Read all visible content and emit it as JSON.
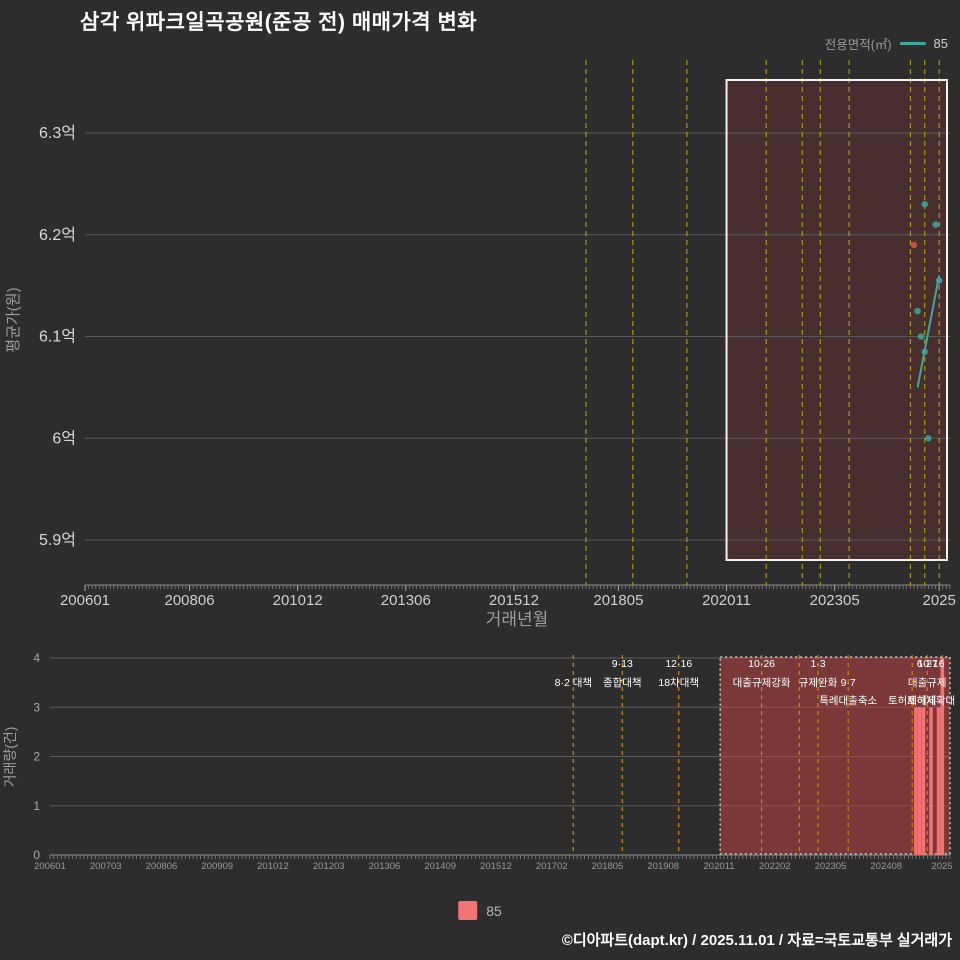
{
  "title": "삼각 위파크일곡공원(준공 전) 매매가격 변화",
  "legend_top": {
    "label": "전용면적(㎡)",
    "series": "85"
  },
  "legend_bottom": {
    "series": "85"
  },
  "footer": "©디아파트(dapt.kr) / 2025.11.01 / 자료=국토교통부 실거래가",
  "colors": {
    "background": "#2d2d2d",
    "title_text": "#ffffff",
    "axis_text": "#9f9f9f",
    "tick_text": "#cfcfcf",
    "grid_line": "#5a5a5a",
    "policy_line_top": "#b3b300",
    "policy_line_bottom": "#cf8600",
    "highlight_fill_top": "rgba(170,50,50,0.22)",
    "highlight_border_top": "#f2f2f2",
    "highlight_fill_bottom": "rgba(220,70,70,0.45)",
    "highlight_border_bottom": "#e0e0e0",
    "series_teal": "#3ea8a0",
    "point_red": "#d9534f",
    "bar_color": "#f37272",
    "annotation_text": "#ffffff"
  },
  "chart_data": [
    {
      "type": "scatter",
      "name": "매매가격 변화 (전용면적 85㎡)",
      "xlabel": "거래년월",
      "ylabel": "평균가(원)",
      "ylim_eok": [
        5.85,
        6.37
      ],
      "xlim_ym": [
        "200601",
        "202602"
      ],
      "grid": true,
      "y_ticks": [
        {
          "label": "6.3억",
          "v": 6.3
        },
        {
          "label": "6.2억",
          "v": 6.2
        },
        {
          "label": "6.1억",
          "v": 6.1
        },
        {
          "label": "6억",
          "v": 6.0
        },
        {
          "label": "5.9억",
          "v": 5.9
        }
      ],
      "x_ticks": [
        {
          "label": "200601",
          "ym": "200601"
        },
        {
          "label": "200806",
          "ym": "200806"
        },
        {
          "label": "201012",
          "ym": "201012"
        },
        {
          "label": "201306",
          "ym": "201306"
        },
        {
          "label": "201512",
          "ym": "201512"
        },
        {
          "label": "201805",
          "ym": "201805"
        },
        {
          "label": "202011",
          "ym": "202011"
        },
        {
          "label": "202305",
          "ym": "202305"
        },
        {
          "label": "2025",
          "ym": "202510"
        }
      ],
      "policy_lines": [
        "201708",
        "201809",
        "201912",
        "202110",
        "202208",
        "202301",
        "202309",
        "202502",
        "202506",
        "202510"
      ],
      "highlight": {
        "from": "202011",
        "to": "202602"
      },
      "points": [
        {
          "ym": "202503",
          "v": 6.19,
          "flag": "red"
        },
        {
          "ym": "202504",
          "v": 6.125
        },
        {
          "ym": "202505",
          "v": 6.1
        },
        {
          "ym": "202506",
          "v": 6.23
        },
        {
          "ym": "202506",
          "v": 6.085
        },
        {
          "ym": "202507",
          "v": 6.0
        },
        {
          "ym": "202509",
          "v": 6.21
        },
        {
          "ym": "202510",
          "v": 6.155
        }
      ],
      "trend_line": {
        "name": "85",
        "points": [
          {
            "ym": "202504",
            "v": 6.05
          },
          {
            "ym": "202510",
            "v": 6.16
          }
        ]
      }
    },
    {
      "type": "bar",
      "name": "거래량",
      "ylabel": "거래량(건)",
      "ylim": [
        0,
        4
      ],
      "y_ticks": [
        0,
        1,
        2,
        3,
        4
      ],
      "x_tick_labels": [
        "200601",
        "200703",
        "200806",
        "200909",
        "201012",
        "201203",
        "201306",
        "201409",
        "201512",
        "201702",
        "201805",
        "201908",
        "202011",
        "202202",
        "202305",
        "202408",
        "2025"
      ],
      "policy_lines": [
        "201708",
        "201809",
        "201912",
        "202110",
        "202208",
        "202301",
        "202309",
        "202502",
        "202506",
        "202510"
      ],
      "highlight": {
        "from": "202011",
        "to": "202512"
      },
      "bars": [
        {
          "ym": "202503",
          "v": 3
        },
        {
          "ym": "202504",
          "v": 3
        },
        {
          "ym": "202505",
          "v": 3
        },
        {
          "ym": "202507",
          "v": 3
        },
        {
          "ym": "202509",
          "v": 3
        },
        {
          "ym": "202510",
          "v": 4
        }
      ],
      "annotations": [
        {
          "ym": "201708",
          "row": 2,
          "text": "8·2 대책"
        },
        {
          "ym": "201809",
          "row": 1,
          "text": "9·13"
        },
        {
          "ym": "201809",
          "row": 2,
          "text": "종합대책"
        },
        {
          "ym": "201912",
          "row": 1,
          "text": "12·16"
        },
        {
          "ym": "201912",
          "row": 2,
          "text": "18차대책"
        },
        {
          "ym": "202110",
          "row": 1,
          "text": "10·26"
        },
        {
          "ym": "202110",
          "row": 2,
          "text": "대출규제강화"
        },
        {
          "ym": "202301",
          "row": 1,
          "text": "1·3"
        },
        {
          "ym": "202301",
          "row": 2,
          "text": "규제완화"
        },
        {
          "ym": "202309",
          "row": 2,
          "text": "9·7"
        },
        {
          "ym": "202309",
          "row": 3,
          "text": "특례대출축소"
        },
        {
          "ym": "202502",
          "row": 3,
          "text": "토허제해제"
        },
        {
          "ym": "202506",
          "row": 1,
          "text": "6·27"
        },
        {
          "ym": "202506",
          "row": 2,
          "text": "대출규제"
        },
        {
          "ym": "202510",
          "row": 1,
          "text": "10·16"
        },
        {
          "ym": "202510",
          "row": 3,
          "text": "토허제확대"
        }
      ]
    }
  ]
}
